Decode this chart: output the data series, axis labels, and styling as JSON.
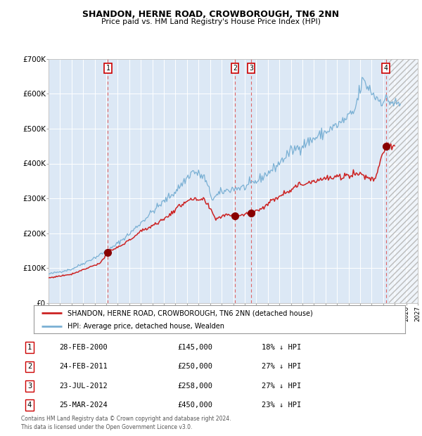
{
  "title": "SHANDON, HERNE ROAD, CROWBOROUGH, TN6 2NN",
  "subtitle": "Price paid vs. HM Land Registry's House Price Index (HPI)",
  "legend_line1": "SHANDON, HERNE ROAD, CROWBOROUGH, TN6 2NN (detached house)",
  "legend_line2": "HPI: Average price, detached house, Wealden",
  "hpi_color": "#7ab0d4",
  "price_color": "#cc2222",
  "background_color": "#dce8f5",
  "sale_marker_color": "#880000",
  "dashed_line_color": "#dd6666",
  "table_rows": [
    {
      "num": "1",
      "date": "28-FEB-2000",
      "price": "£145,000",
      "pct": "18% ↓ HPI"
    },
    {
      "num": "2",
      "date": "24-FEB-2011",
      "price": "£250,000",
      "pct": "27% ↓ HPI"
    },
    {
      "num": "3",
      "date": "23-JUL-2012",
      "price": "£258,000",
      "pct": "27% ↓ HPI"
    },
    {
      "num": "4",
      "date": "25-MAR-2024",
      "price": "£450,000",
      "pct": "23% ↓ HPI"
    }
  ],
  "sale_dates_decimal": [
    2000.15,
    2011.14,
    2012.56,
    2024.23
  ],
  "sale_prices": [
    145000,
    250000,
    258000,
    450000
  ],
  "sale_labels": [
    "1",
    "2",
    "3",
    "4"
  ],
  "xmin": 1995.0,
  "xmax": 2027.0,
  "future_start": 2024.5,
  "ymin": 0,
  "ymax": 700000,
  "yticks": [
    0,
    100000,
    200000,
    300000,
    400000,
    500000,
    600000,
    700000
  ],
  "ytick_labels": [
    "£0",
    "£100K",
    "£200K",
    "£300K",
    "£400K",
    "£500K",
    "£600K",
    "£700K"
  ],
  "footer": "Contains HM Land Registry data © Crown copyright and database right 2024.\nThis data is licensed under the Open Government Licence v3.0."
}
